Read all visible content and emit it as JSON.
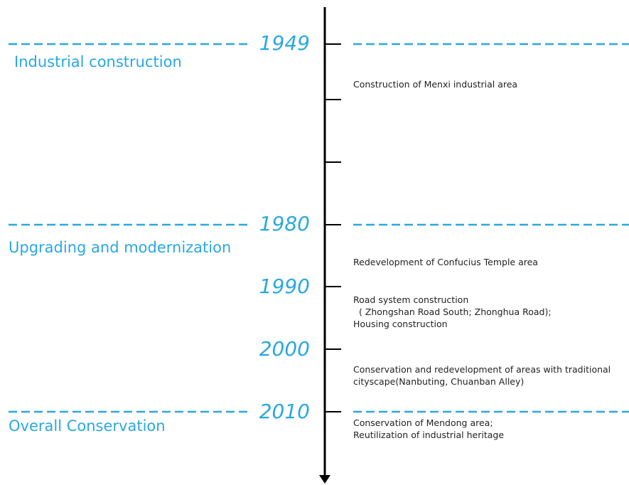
{
  "colors": {
    "accent": "#29a8e0",
    "axis": "#000000",
    "text": "#222222"
  },
  "phases": [
    {
      "label": "Industrial construction"
    },
    {
      "label": "Upgrading and modernization"
    },
    {
      "label": "Overall Conservation"
    }
  ],
  "years": [
    "1949",
    "1980",
    "1990",
    "2000",
    "2010"
  ],
  "events": [
    "Construction of Menxi industrial area",
    "Redevelopment of Confucius Temple area",
    "Road system construction\n  ( Zhongshan Road South; Zhonghua Road);\nHousing construction",
    "Conservation and redevelopment of areas with traditional\ncityscape(Nanbuting, Chuanban Alley)",
    "Conservation of Mendong area;\nReutilization of industrial heritage"
  ]
}
